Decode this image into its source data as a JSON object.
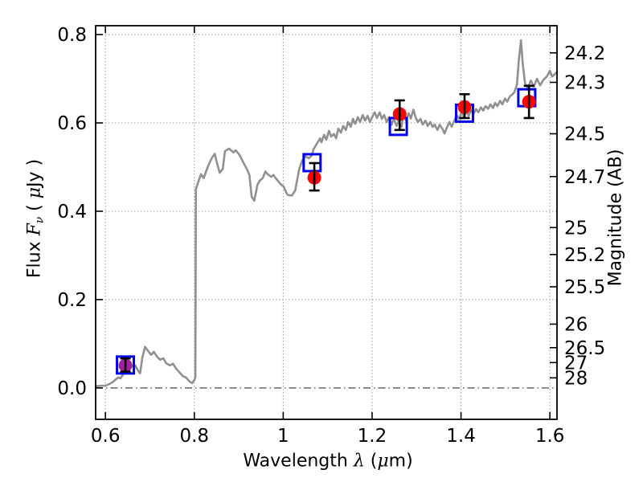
{
  "labels": {
    "ylabel_flux": "Flux ",
    "ylabel_F": "F",
    "ylabel_sub": "ν",
    "ylabel_unit_open": " ( ",
    "ylabel_mu": "μ",
    "ylabel_unit_close": "Jy )",
    "xlabel_main": "Wavelength ",
    "xlabel_lambda": "λ",
    "xlabel_unit_open": " (",
    "xlabel_mu": "μ",
    "xlabel_unit_close": "m)",
    "ylabel_right": "Magnitude (AB)"
  },
  "chart_data": {
    "type": "line",
    "title": "",
    "xlabel": "Wavelength λ (μm)",
    "ylabel": "Flux Fν ( μJy )",
    "ylabel_right": "Magnitude (AB)",
    "xlim": [
      0.578,
      1.616
    ],
    "ylim": [
      -0.071,
      0.82
    ],
    "grid": true,
    "grid_style": "dotted",
    "zero_line_style": "dash-dot",
    "x_ticks": [
      {
        "v": 0.6,
        "label": "0.6"
      },
      {
        "v": 0.8,
        "label": "0.8"
      },
      {
        "v": 1.0,
        "label": "1"
      },
      {
        "v": 1.2,
        "label": "1.2"
      },
      {
        "v": 1.4,
        "label": "1.4"
      },
      {
        "v": 1.6,
        "label": "1.6"
      }
    ],
    "y_ticks_flux": [
      {
        "v": 0.0,
        "label": "0.0"
      },
      {
        "v": 0.2,
        "label": "0.2"
      },
      {
        "v": 0.4,
        "label": "0.4"
      },
      {
        "v": 0.6,
        "label": "0.6"
      },
      {
        "v": 0.8,
        "label": "0.8"
      }
    ],
    "y_ticks_mag": [
      {
        "label": "24.2",
        "flux": 0.7586
      },
      {
        "label": "24.3",
        "flux": 0.6918
      },
      {
        "label": "24.5",
        "flux": 0.5754
      },
      {
        "label": "24.7",
        "flux": 0.4786
      },
      {
        "label": "25",
        "flux": 0.3631
      },
      {
        "label": "25.2",
        "flux": 0.302
      },
      {
        "label": "25.5",
        "flux": 0.2291
      },
      {
        "label": "26",
        "flux": 0.1445
      },
      {
        "label": "26.5",
        "flux": 0.0912
      },
      {
        "label": "27",
        "flux": 0.0575
      },
      {
        "label": "28",
        "flux": 0.0229
      }
    ],
    "colors": {
      "spectrum": "#909090",
      "model_square": "#0000EE",
      "photometry_red": "#FF0000",
      "photometry_magenta": "#A020A0",
      "errorbar": "#000000",
      "grid": "#999999",
      "zero_line": "#333333",
      "spine": "#000000"
    },
    "spectrum": {
      "name": "galaxy-spectrum",
      "points": [
        [
          0.578,
          0.004
        ],
        [
          0.589,
          0.005
        ],
        [
          0.6,
          0.005
        ],
        [
          0.609,
          0.009
        ],
        [
          0.616,
          0.013
        ],
        [
          0.624,
          0.02
        ],
        [
          0.629,
          0.024
        ],
        [
          0.634,
          0.022
        ],
        [
          0.64,
          0.031
        ],
        [
          0.647,
          0.037
        ],
        [
          0.654,
          0.044
        ],
        [
          0.661,
          0.05
        ],
        [
          0.667,
          0.051
        ],
        [
          0.674,
          0.038
        ],
        [
          0.678,
          0.033
        ],
        [
          0.683,
          0.069
        ],
        [
          0.689,
          0.093
        ],
        [
          0.696,
          0.084
        ],
        [
          0.703,
          0.075
        ],
        [
          0.709,
          0.082
        ],
        [
          0.716,
          0.071
        ],
        [
          0.723,
          0.064
        ],
        [
          0.73,
          0.067
        ],
        [
          0.737,
          0.056
        ],
        [
          0.745,
          0.051
        ],
        [
          0.752,
          0.055
        ],
        [
          0.759,
          0.044
        ],
        [
          0.766,
          0.036
        ],
        [
          0.774,
          0.027
        ],
        [
          0.781,
          0.024
        ],
        [
          0.788,
          0.016
        ],
        [
          0.795,
          0.011
        ],
        [
          0.8,
          0.018
        ],
        [
          0.8025,
          0.024
        ],
        [
          0.8035,
          0.45
        ],
        [
          0.81,
          0.47
        ],
        [
          0.815,
          0.484
        ],
        [
          0.821,
          0.475
        ],
        [
          0.83,
          0.5
        ],
        [
          0.839,
          0.52
        ],
        [
          0.846,
          0.53
        ],
        [
          0.851,
          0.509
        ],
        [
          0.857,
          0.487
        ],
        [
          0.864,
          0.496
        ],
        [
          0.869,
          0.536
        ],
        [
          0.878,
          0.542
        ],
        [
          0.888,
          0.533
        ],
        [
          0.893,
          0.538
        ],
        [
          0.902,
          0.527
        ],
        [
          0.911,
          0.509
        ],
        [
          0.918,
          0.496
        ],
        [
          0.924,
          0.482
        ],
        [
          0.929,
          0.433
        ],
        [
          0.935,
          0.424
        ],
        [
          0.942,
          0.46
        ],
        [
          0.947,
          0.469
        ],
        [
          0.954,
          0.475
        ],
        [
          0.96,
          0.49
        ],
        [
          0.965,
          0.484
        ],
        [
          0.973,
          0.478
        ],
        [
          0.978,
          0.482
        ],
        [
          0.983,
          0.475
        ],
        [
          0.991,
          0.465
        ],
        [
          0.996,
          0.46
        ],
        [
          1.001,
          0.456
        ],
        [
          1.009,
          0.438
        ],
        [
          1.014,
          0.436
        ],
        [
          1.02,
          0.436
        ],
        [
          1.027,
          0.447
        ],
        [
          1.036,
          0.496
        ],
        [
          1.043,
          0.515
        ],
        [
          1.05,
          0.524
        ],
        [
          1.058,
          0.52
        ],
        [
          1.065,
          0.527
        ],
        [
          1.068,
          0.54
        ],
        [
          1.077,
          0.555
        ],
        [
          1.083,
          0.565
        ],
        [
          1.086,
          0.556
        ],
        [
          1.092,
          0.573
        ],
        [
          1.097,
          0.562
        ],
        [
          1.103,
          0.582
        ],
        [
          1.108,
          0.569
        ],
        [
          1.114,
          0.575
        ],
        [
          1.119,
          0.565
        ],
        [
          1.124,
          0.587
        ],
        [
          1.13,
          0.578
        ],
        [
          1.135,
          0.593
        ],
        [
          1.141,
          0.584
        ],
        [
          1.146,
          0.602
        ],
        [
          1.152,
          0.591
        ],
        [
          1.157,
          0.609
        ],
        [
          1.162,
          0.598
        ],
        [
          1.168,
          0.613
        ],
        [
          1.173,
          0.602
        ],
        [
          1.179,
          0.618
        ],
        [
          1.184,
          0.605
        ],
        [
          1.19,
          0.616
        ],
        [
          1.195,
          0.602
        ],
        [
          1.2,
          0.613
        ],
        [
          1.206,
          0.624
        ],
        [
          1.211,
          0.611
        ],
        [
          1.217,
          0.624
        ],
        [
          1.222,
          0.609
        ],
        [
          1.227,
          0.618
        ],
        [
          1.233,
          0.602
        ],
        [
          1.238,
          0.613
        ],
        [
          1.244,
          0.596
        ],
        [
          1.249,
          0.609
        ],
        [
          1.255,
          0.593
        ],
        [
          1.26,
          0.605
        ],
        [
          1.266,
          0.591
        ],
        [
          1.271,
          0.62
        ],
        [
          1.276,
          0.605
        ],
        [
          1.282,
          0.622
        ],
        [
          1.287,
          0.61
        ],
        [
          1.293,
          0.63
        ],
        [
          1.298,
          0.612
        ],
        [
          1.303,
          0.602
        ],
        [
          1.309,
          0.609
        ],
        [
          1.314,
          0.596
        ],
        [
          1.32,
          0.605
        ],
        [
          1.325,
          0.593
        ],
        [
          1.331,
          0.602
        ],
        [
          1.336,
          0.591
        ],
        [
          1.341,
          0.596
        ],
        [
          1.347,
          0.584
        ],
        [
          1.352,
          0.596
        ],
        [
          1.358,
          0.587
        ],
        [
          1.363,
          0.576
        ],
        [
          1.369,
          0.591
        ],
        [
          1.374,
          0.602
        ],
        [
          1.379,
          0.591
        ],
        [
          1.385,
          0.605
        ],
        [
          1.39,
          0.618
        ],
        [
          1.396,
          0.609
        ],
        [
          1.401,
          0.624
        ],
        [
          1.407,
          0.613
        ],
        [
          1.412,
          0.627
        ],
        [
          1.417,
          0.616
        ],
        [
          1.423,
          0.629
        ],
        [
          1.428,
          0.62
        ],
        [
          1.434,
          0.631
        ],
        [
          1.439,
          0.624
        ],
        [
          1.445,
          0.635
        ],
        [
          1.45,
          0.628
        ],
        [
          1.455,
          0.638
        ],
        [
          1.461,
          0.632
        ],
        [
          1.466,
          0.642
        ],
        [
          1.472,
          0.634
        ],
        [
          1.477,
          0.645
        ],
        [
          1.482,
          0.638
        ],
        [
          1.488,
          0.65
        ],
        [
          1.493,
          0.642
        ],
        [
          1.499,
          0.655
        ],
        [
          1.504,
          0.648
        ],
        [
          1.51,
          0.66
        ],
        [
          1.515,
          0.664
        ],
        [
          1.52,
          0.669
        ],
        [
          1.526,
          0.687
        ],
        [
          1.53,
          0.74
        ],
        [
          1.535,
          0.787
        ],
        [
          1.539,
          0.733
        ],
        [
          1.544,
          0.69
        ],
        [
          1.55,
          0.678
        ],
        [
          1.557,
          0.696
        ],
        [
          1.564,
          0.682
        ],
        [
          1.571,
          0.7
        ],
        [
          1.578,
          0.685
        ],
        [
          1.586,
          0.698
        ],
        [
          1.593,
          0.705
        ],
        [
          1.6,
          0.718
        ],
        [
          1.605,
          0.705
        ],
        [
          1.611,
          0.71
        ],
        [
          1.616,
          0.715
        ]
      ]
    },
    "photometry": {
      "name": "observed-photometry",
      "points": [
        {
          "x": 0.645,
          "y": 0.051,
          "err_lo": 0.014,
          "err_hi": 0.016,
          "color": "#A020A0"
        },
        {
          "x": 1.07,
          "y": 0.476,
          "err_lo": 0.029,
          "err_hi": 0.033,
          "color": "#FF0000"
        },
        {
          "x": 1.262,
          "y": 0.62,
          "err_lo": 0.036,
          "err_hi": 0.031,
          "color": "#FF0000"
        },
        {
          "x": 1.408,
          "y": 0.636,
          "err_lo": 0.025,
          "err_hi": 0.029,
          "color": "#FF0000"
        },
        {
          "x": 1.553,
          "y": 0.648,
          "err_lo": 0.037,
          "err_hi": 0.036,
          "color": "#FF0000"
        }
      ]
    },
    "model_photometry": {
      "name": "model-photometry",
      "points": [
        [
          0.645,
          0.052
        ],
        [
          1.065,
          0.51
        ],
        [
          1.259,
          0.592
        ],
        [
          1.408,
          0.622
        ],
        [
          1.548,
          0.657
        ]
      ]
    }
  }
}
